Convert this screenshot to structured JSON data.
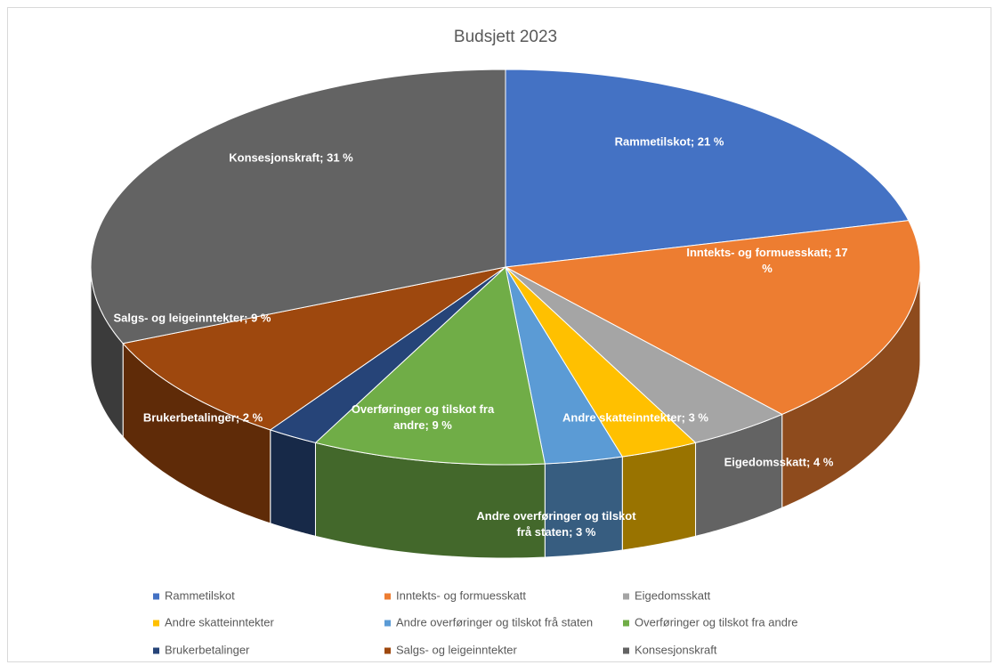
{
  "chart_data": {
    "type": "pie3d",
    "title": "Budsjett 2023",
    "categories": [
      "Rammetilskot",
      "Inntekts- og formuesskatt",
      "Eigedomsskatt",
      "Andre skatteinntekter",
      "Andre overføringer og tilskot frå staten",
      "Overføringer og tilskot fra andre",
      "Brukerbetalinger",
      "Salgs- og leigeinntekter",
      "Konsesjonskraft"
    ],
    "values": [
      21,
      17,
      4,
      3,
      3,
      9,
      2,
      9,
      31
    ],
    "value_labels": [
      "Rammetilskot; 21 %",
      "Inntekts- og formuesskatt; 17 %",
      "Eigedomsskatt; 4 %",
      "Andre skatteinntekter; 3 %",
      "Andre overføringer og tilskot frå staten; 3 %",
      "Overføringer og tilskot fra andre; 9 %",
      "Brukerbetalinger; 2 %",
      "Salgs- og leigeinntekter; 9 %",
      "Konsesjonskraft; 31 %"
    ],
    "colors": [
      "#4472c4",
      "#ed7d31",
      "#a5a5a5",
      "#ffc000",
      "#5b9bd5",
      "#70ad47",
      "#264478",
      "#9e480e",
      "#636363"
    ],
    "legend": "bottom"
  }
}
